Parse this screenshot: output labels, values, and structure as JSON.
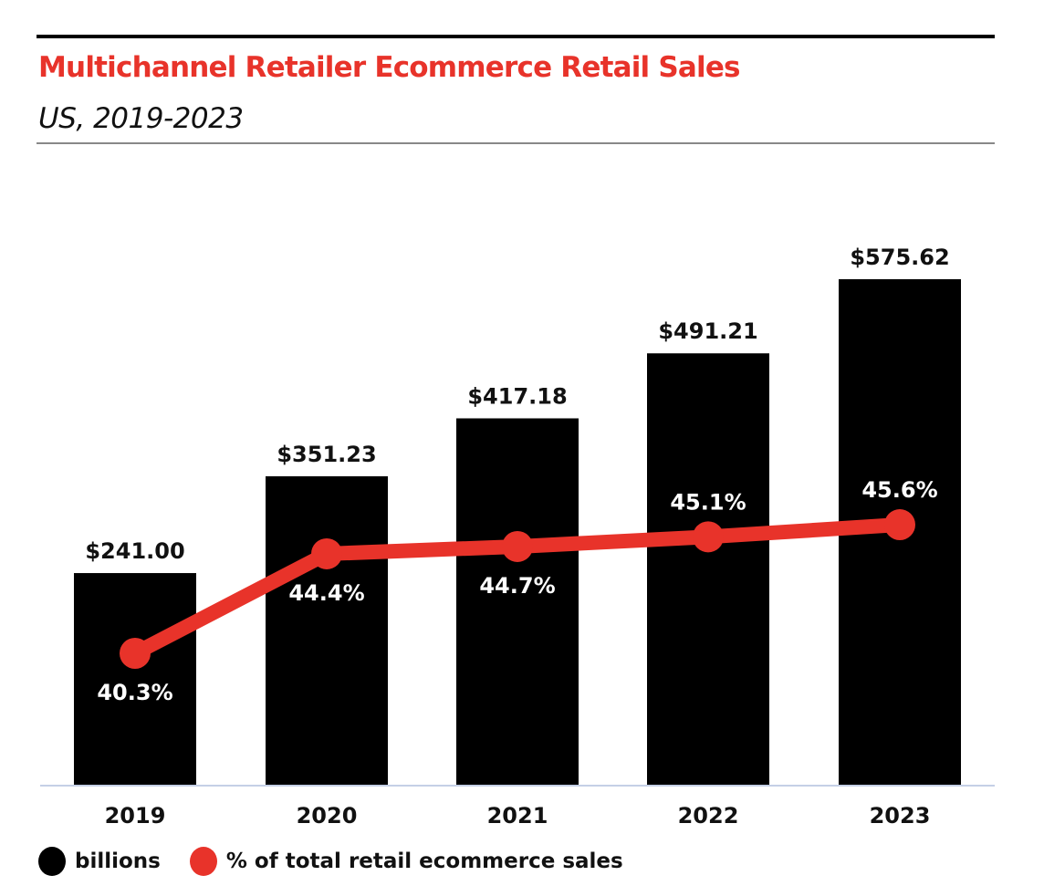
{
  "chart_data": {
    "type": "bar+line",
    "title": "Multichannel Retailer Ecommerce Retail Sales",
    "subtitle": "US, 2019-2023",
    "categories": [
      "2019",
      "2020",
      "2021",
      "2022",
      "2023"
    ],
    "series": [
      {
        "name": "billions",
        "type": "bar",
        "color": "#000000",
        "values": [
          241.0,
          351.23,
          417.18,
          491.21,
          575.62
        ],
        "labels": [
          "$241.00",
          "$351.23",
          "$417.18",
          "$491.21",
          "$575.62"
        ]
      },
      {
        "name": "% of total retail ecommerce sales",
        "type": "line",
        "color": "#e8332a",
        "values": [
          40.3,
          44.4,
          44.7,
          45.1,
          45.6
        ],
        "labels": [
          "40.3%",
          "44.4%",
          "44.7%",
          "45.1%",
          "45.6%"
        ]
      }
    ],
    "legend_position": "bottom-left",
    "grid": false
  }
}
